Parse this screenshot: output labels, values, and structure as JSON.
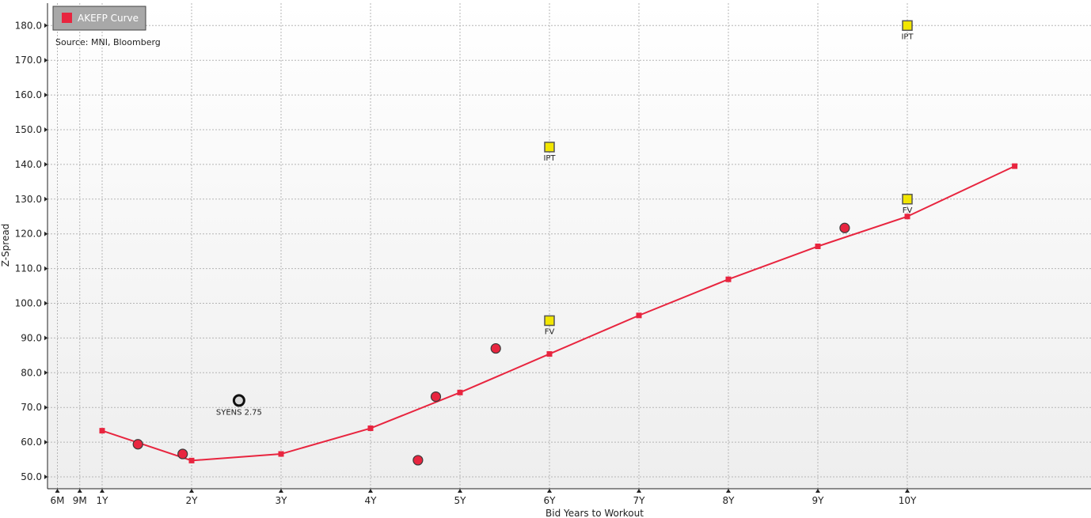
{
  "chart_data": {
    "type": "line",
    "xlabel": "Bid Years to Workout",
    "ylabel": "Z-Spread",
    "source": "Source: MNI, Bloomberg",
    "ylim": [
      50,
      180
    ],
    "xlim": [
      0.37,
      11.2
    ],
    "y_ticks": [
      "50.0",
      "60.0",
      "70.0",
      "80.0",
      "90.0",
      "100.0",
      "110.0",
      "120.0",
      "130.0",
      "140.0",
      "150.0",
      "160.0",
      "170.0",
      "180.0"
    ],
    "x_ticks": [
      {
        "value": 0.5,
        "label": "6M"
      },
      {
        "value": 0.75,
        "label": "9M"
      },
      {
        "value": 1,
        "label": "1Y"
      },
      {
        "value": 2,
        "label": "2Y"
      },
      {
        "value": 3,
        "label": "3Y"
      },
      {
        "value": 4,
        "label": "4Y"
      },
      {
        "value": 5,
        "label": "5Y"
      },
      {
        "value": 6,
        "label": "6Y"
      },
      {
        "value": 7,
        "label": "7Y"
      },
      {
        "value": 8,
        "label": "8Y"
      },
      {
        "value": 9,
        "label": "9Y"
      },
      {
        "value": 10,
        "label": "10Y"
      }
    ],
    "grid": true,
    "legend_position": "top-left",
    "series": [
      {
        "name": "AKEFP Curve",
        "color": "#e8253f",
        "x": [
          1,
          2,
          3,
          4,
          5,
          6,
          7,
          8,
          9,
          10,
          11.2
        ],
        "y": [
          63.3,
          54.7,
          56.6,
          64.0,
          74.3,
          85.4,
          96.5,
          106.9,
          116.4,
          125.0,
          139.5
        ]
      }
    ],
    "bonds": {
      "color": "#e8253f",
      "x": [
        1.4,
        1.9,
        4.53,
        4.73,
        5.4,
        9.3
      ],
      "y": [
        59.4,
        56.6,
        54.8,
        73.1,
        87.0,
        121.7
      ]
    },
    "highlighted": [
      {
        "x": 2.53,
        "y": 72.0,
        "label": "SYENS 2.75",
        "color": "#111111"
      }
    ],
    "markers": [
      {
        "x": 6,
        "y": 145,
        "label": "IPT",
        "color": "#f2e600"
      },
      {
        "x": 6,
        "y": 95,
        "label": "FV",
        "color": "#f2e600"
      },
      {
        "x": 10,
        "y": 180,
        "label": "IPT",
        "color": "#f2e600"
      },
      {
        "x": 10,
        "y": 130,
        "label": "FV",
        "color": "#f2e600"
      }
    ]
  }
}
